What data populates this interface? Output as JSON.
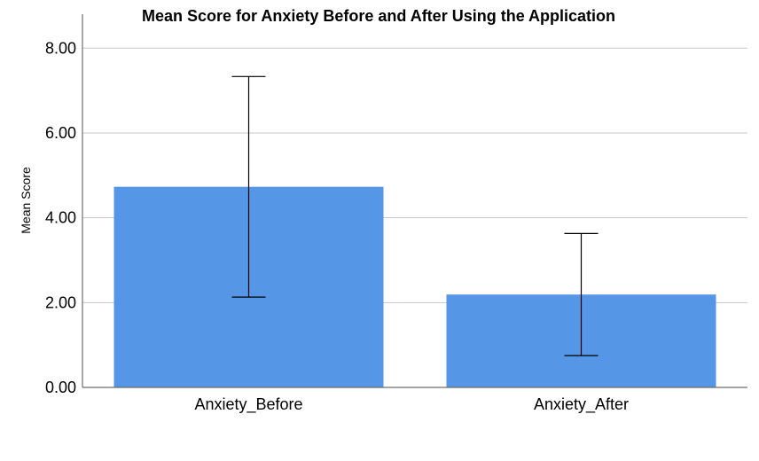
{
  "chart_data": {
    "type": "bar",
    "title": "Mean Score for Anxiety Before and After Using the Application",
    "xlabel": "",
    "ylabel": "Mean Score",
    "categories": [
      "Anxiety_Before",
      "Anxiety_After"
    ],
    "values": [
      4.73,
      2.19
    ],
    "error_bars": [
      {
        "low": 2.13,
        "high": 7.33
      },
      {
        "low": 0.75,
        "high": 3.63
      }
    ],
    "ylim": [
      0,
      8.8
    ],
    "yticks": [
      0,
      2,
      4,
      6,
      8
    ],
    "ytick_labels": [
      "0.00",
      "2.00",
      "4.00",
      "6.00",
      "8.00"
    ],
    "grid": true,
    "bar_color": "#5596e6",
    "grid_color": "#c8c8c8",
    "axis_color": "#6e6e6e",
    "error_bar_color": "#000000"
  }
}
